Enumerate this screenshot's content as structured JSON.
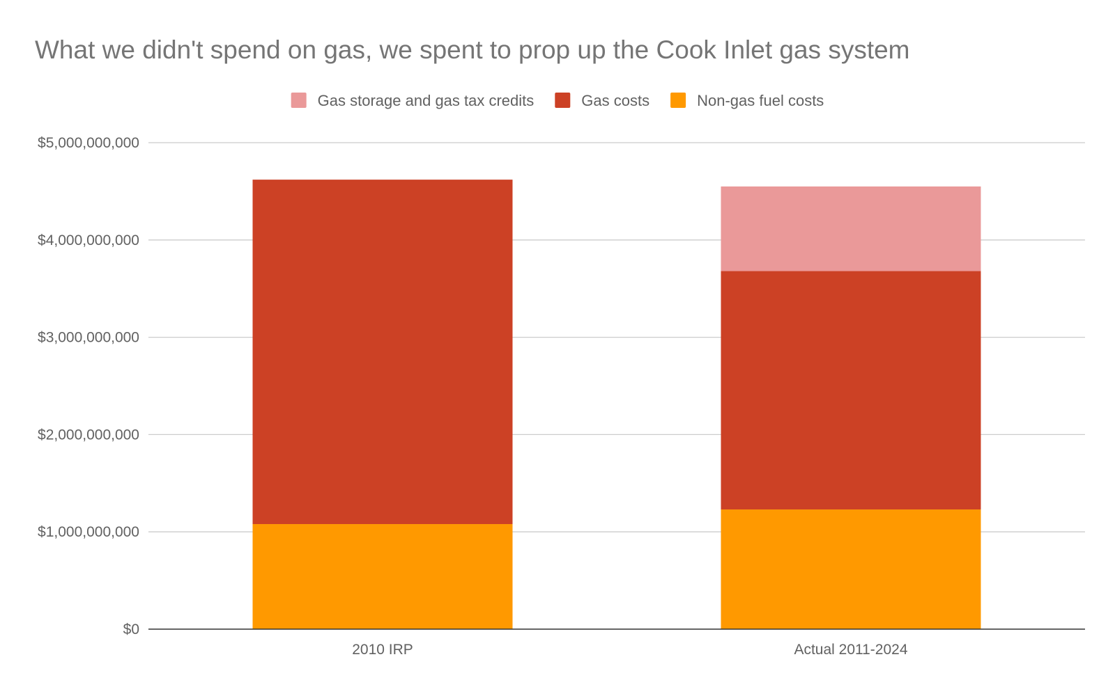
{
  "chart_data": {
    "type": "bar",
    "stacked": true,
    "title": "What we didn't spend on gas, we spent to prop up the Cook Inlet gas system",
    "xlabel": "",
    "ylabel": "",
    "ylim": [
      0,
      5000000000
    ],
    "yticks": [
      0,
      1000000000,
      2000000000,
      3000000000,
      4000000000,
      5000000000
    ],
    "ytick_labels": [
      "$0",
      "$1,000,000,000",
      "$2,000,000,000",
      "$3,000,000,000",
      "$4,000,000,000",
      "$5,000,000,000"
    ],
    "categories": [
      "2010 IRP",
      "Actual 2011-2024"
    ],
    "legend_position": "top",
    "grid": true,
    "series": [
      {
        "name": "Non-gas fuel costs",
        "color": "#ff9900",
        "values": [
          1080000000,
          1230000000
        ]
      },
      {
        "name": "Gas costs",
        "color": "#cc4125",
        "values": [
          3540000000,
          2450000000
        ]
      },
      {
        "name": "Gas storage and gas tax credits",
        "color": "#ea9999",
        "values": [
          0,
          870000000
        ]
      }
    ],
    "legend_order": [
      "Gas storage and gas tax credits",
      "Gas costs",
      "Non-gas fuel costs"
    ]
  }
}
